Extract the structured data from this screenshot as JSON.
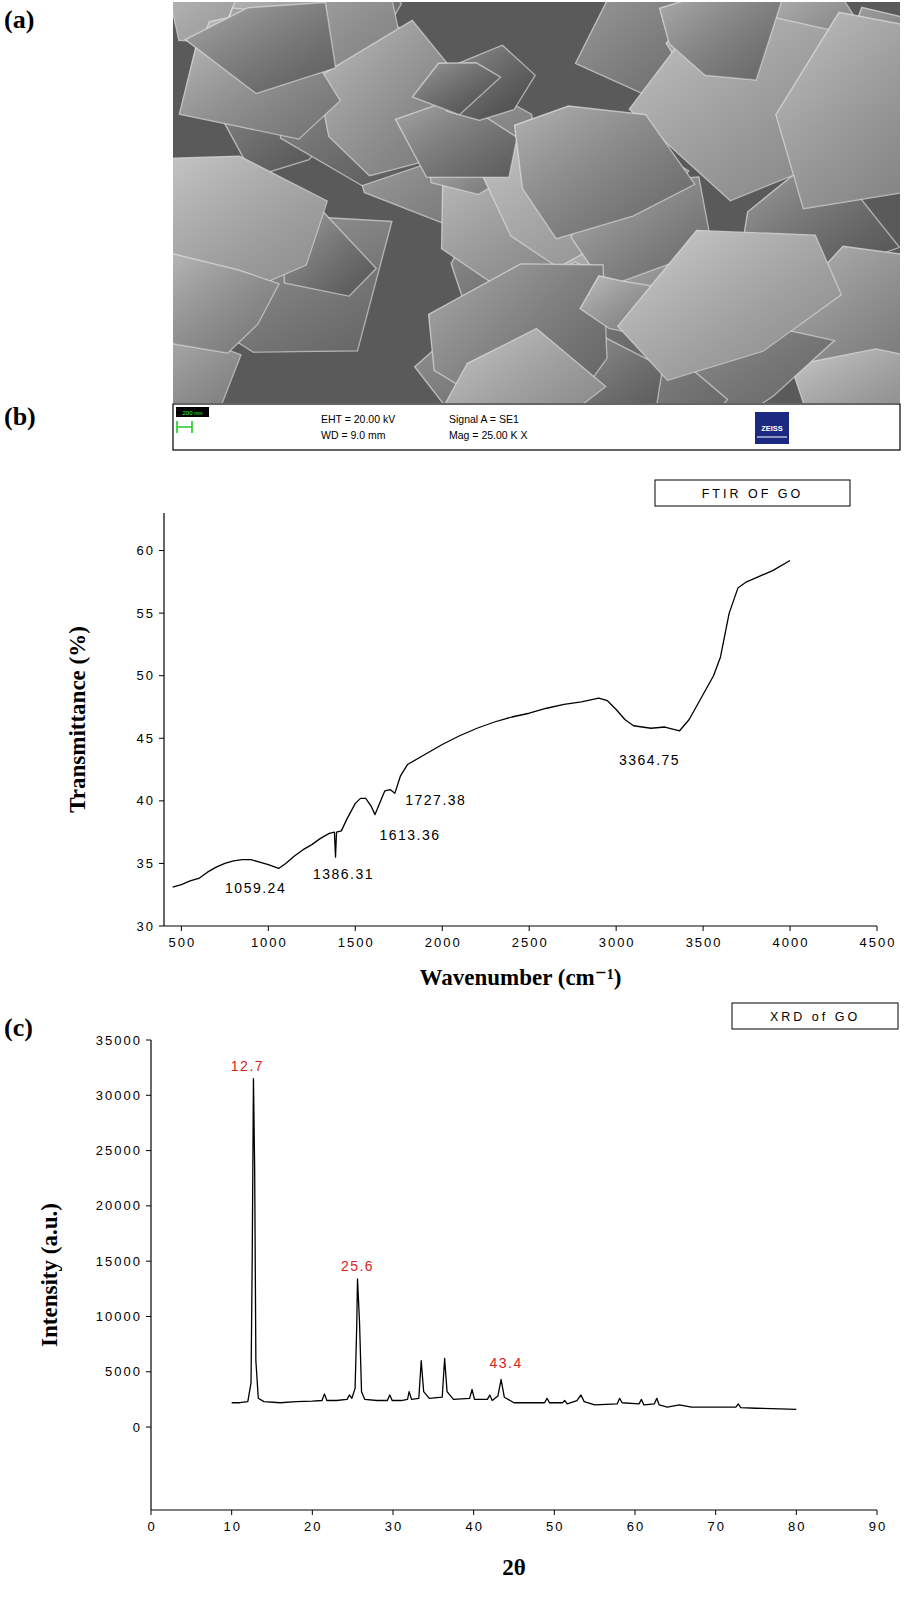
{
  "sem_image": {
    "panel": "(a)",
    "scale_bar": "200 nm",
    "eht": "EHT = 20.00 kV",
    "wd": "WD = 9.0 mm",
    "signal": "Signal A = SE1",
    "mag": "Mag =  25.00 K X",
    "logo": "ZEISS"
  },
  "chart_data": [
    {
      "type": "line",
      "panel": "(b)",
      "title": "FTIR OF GO",
      "x_label": "Wavenumber (cm⁻¹)",
      "y_label": "Transmittance (%)",
      "x": [
        450,
        500,
        550,
        600,
        650,
        700,
        750,
        800,
        850,
        900,
        950,
        1000,
        1059.24,
        1100,
        1150,
        1200,
        1250,
        1300,
        1350,
        1380,
        1386.31,
        1392,
        1420,
        1450,
        1500,
        1530,
        1560,
        1590,
        1613.36,
        1640,
        1670,
        1700,
        1727.38,
        1760,
        1800,
        1900,
        2000,
        2100,
        2200,
        2300,
        2400,
        2500,
        2600,
        2700,
        2800,
        2900,
        2950,
        3000,
        3050,
        3100,
        3200,
        3280,
        3364.75,
        3420,
        3500,
        3560,
        3600,
        3650,
        3700,
        3750,
        3800,
        3900,
        4000
      ],
      "values": [
        33.1,
        33.3,
        33.6,
        33.8,
        34.3,
        34.7,
        35.0,
        35.2,
        35.3,
        35.3,
        35.1,
        34.9,
        34.6,
        35.0,
        35.6,
        36.1,
        36.5,
        37.0,
        37.4,
        37.5,
        35.5,
        37.5,
        37.6,
        38.5,
        39.8,
        40.2,
        40.2,
        39.6,
        38.9,
        39.8,
        40.8,
        40.9,
        40.6,
        42.0,
        42.9,
        43.7,
        44.5,
        45.2,
        45.8,
        46.3,
        46.7,
        47.0,
        47.4,
        47.7,
        47.9,
        48.2,
        48.0,
        47.3,
        46.5,
        46.0,
        45.8,
        45.9,
        45.6,
        46.5,
        48.5,
        50.0,
        51.5,
        55.0,
        57.0,
        57.5,
        57.8,
        58.4,
        59.2
      ],
      "color": "#000000",
      "xlim": [
        400,
        4500
      ],
      "xticks": [
        500,
        1000,
        1500,
        2000,
        2500,
        3000,
        3500,
        4000,
        4500
      ],
      "ylim": [
        30,
        63
      ],
      "yticks": [
        30,
        35,
        40,
        45,
        50,
        55,
        60
      ],
      "grid": false,
      "annotations": [
        {
          "text": "1059.24",
          "x": 1059.24,
          "y": 34.6
        },
        {
          "text": "1386.31",
          "x": 1386.31,
          "y": 35.5
        },
        {
          "text": "1613.36",
          "x": 1613.36,
          "y": 38.9
        },
        {
          "text": "1727.38",
          "x": 1727.38,
          "y": 40.6
        },
        {
          "text": "3364.75",
          "x": 3364.75,
          "y": 45.6
        }
      ]
    },
    {
      "type": "line",
      "panel": "(c)",
      "title": "XRD of GO",
      "x_label": "2θ",
      "y_label": "Intensity (a.u.)",
      "x": [
        10,
        11,
        12,
        12.4,
        12.55,
        12.7,
        12.85,
        13,
        13.3,
        14,
        16,
        18,
        20,
        21.2,
        21.5,
        21.8,
        23,
        24.3,
        24.6,
        24.9,
        25.3,
        25.5,
        25.6,
        25.85,
        26.1,
        26.5,
        28,
        29.3,
        29.6,
        29.9,
        31,
        31.8,
        32,
        32.3,
        33.2,
        33.5,
        33.8,
        34.5,
        36.1,
        36.4,
        36.7,
        37.5,
        39.5,
        39.8,
        40.1,
        41.7,
        42,
        42.3,
        43,
        43.4,
        43.8,
        45,
        48.8,
        49.1,
        49.4,
        51,
        51.3,
        51.6,
        52.8,
        53.3,
        53.7,
        55,
        57.8,
        58.1,
        58.4,
        60.5,
        60.8,
        61.1,
        62.4,
        62.7,
        63,
        64,
        65.5,
        67,
        70,
        72.5,
        72.8,
        73.1,
        75,
        78,
        80
      ],
      "values": [
        2200,
        2200,
        2300,
        4000,
        15500,
        31500,
        23400,
        6000,
        2600,
        2300,
        2200,
        2300,
        2350,
        2400,
        3000,
        2400,
        2400,
        2500,
        2900,
        2600,
        3500,
        9000,
        13400,
        9500,
        3200,
        2500,
        2400,
        2400,
        2900,
        2400,
        2400,
        2500,
        3200,
        2500,
        2600,
        6000,
        3200,
        2600,
        2700,
        6200,
        3200,
        2500,
        2600,
        3400,
        2500,
        2500,
        2900,
        2400,
        2800,
        4300,
        2700,
        2200,
        2200,
        2600,
        2200,
        2200,
        2400,
        2100,
        2400,
        2900,
        2300,
        2000,
        2100,
        2600,
        2200,
        2100,
        2500,
        2000,
        2100,
        2600,
        2000,
        1800,
        2000,
        1800,
        1800,
        1800,
        2100,
        1750,
        1700,
        1650,
        1600
      ],
      "color": "#000000",
      "xlim": [
        0,
        90
      ],
      "xticks": [
        0,
        10,
        20,
        30,
        40,
        50,
        60,
        70,
        80,
        90
      ],
      "ylim": [
        -7500,
        35000
      ],
      "yticks": [
        0,
        5000,
        10000,
        15000,
        20000,
        25000,
        30000,
        35000
      ],
      "grid": false,
      "annotations": [
        {
          "text": "12.7",
          "x": 12.7,
          "y": 31500
        },
        {
          "text": "25.6",
          "x": 25.6,
          "y": 13400
        },
        {
          "text": "43.4",
          "x": 43.4,
          "y": 4300
        }
      ]
    }
  ]
}
